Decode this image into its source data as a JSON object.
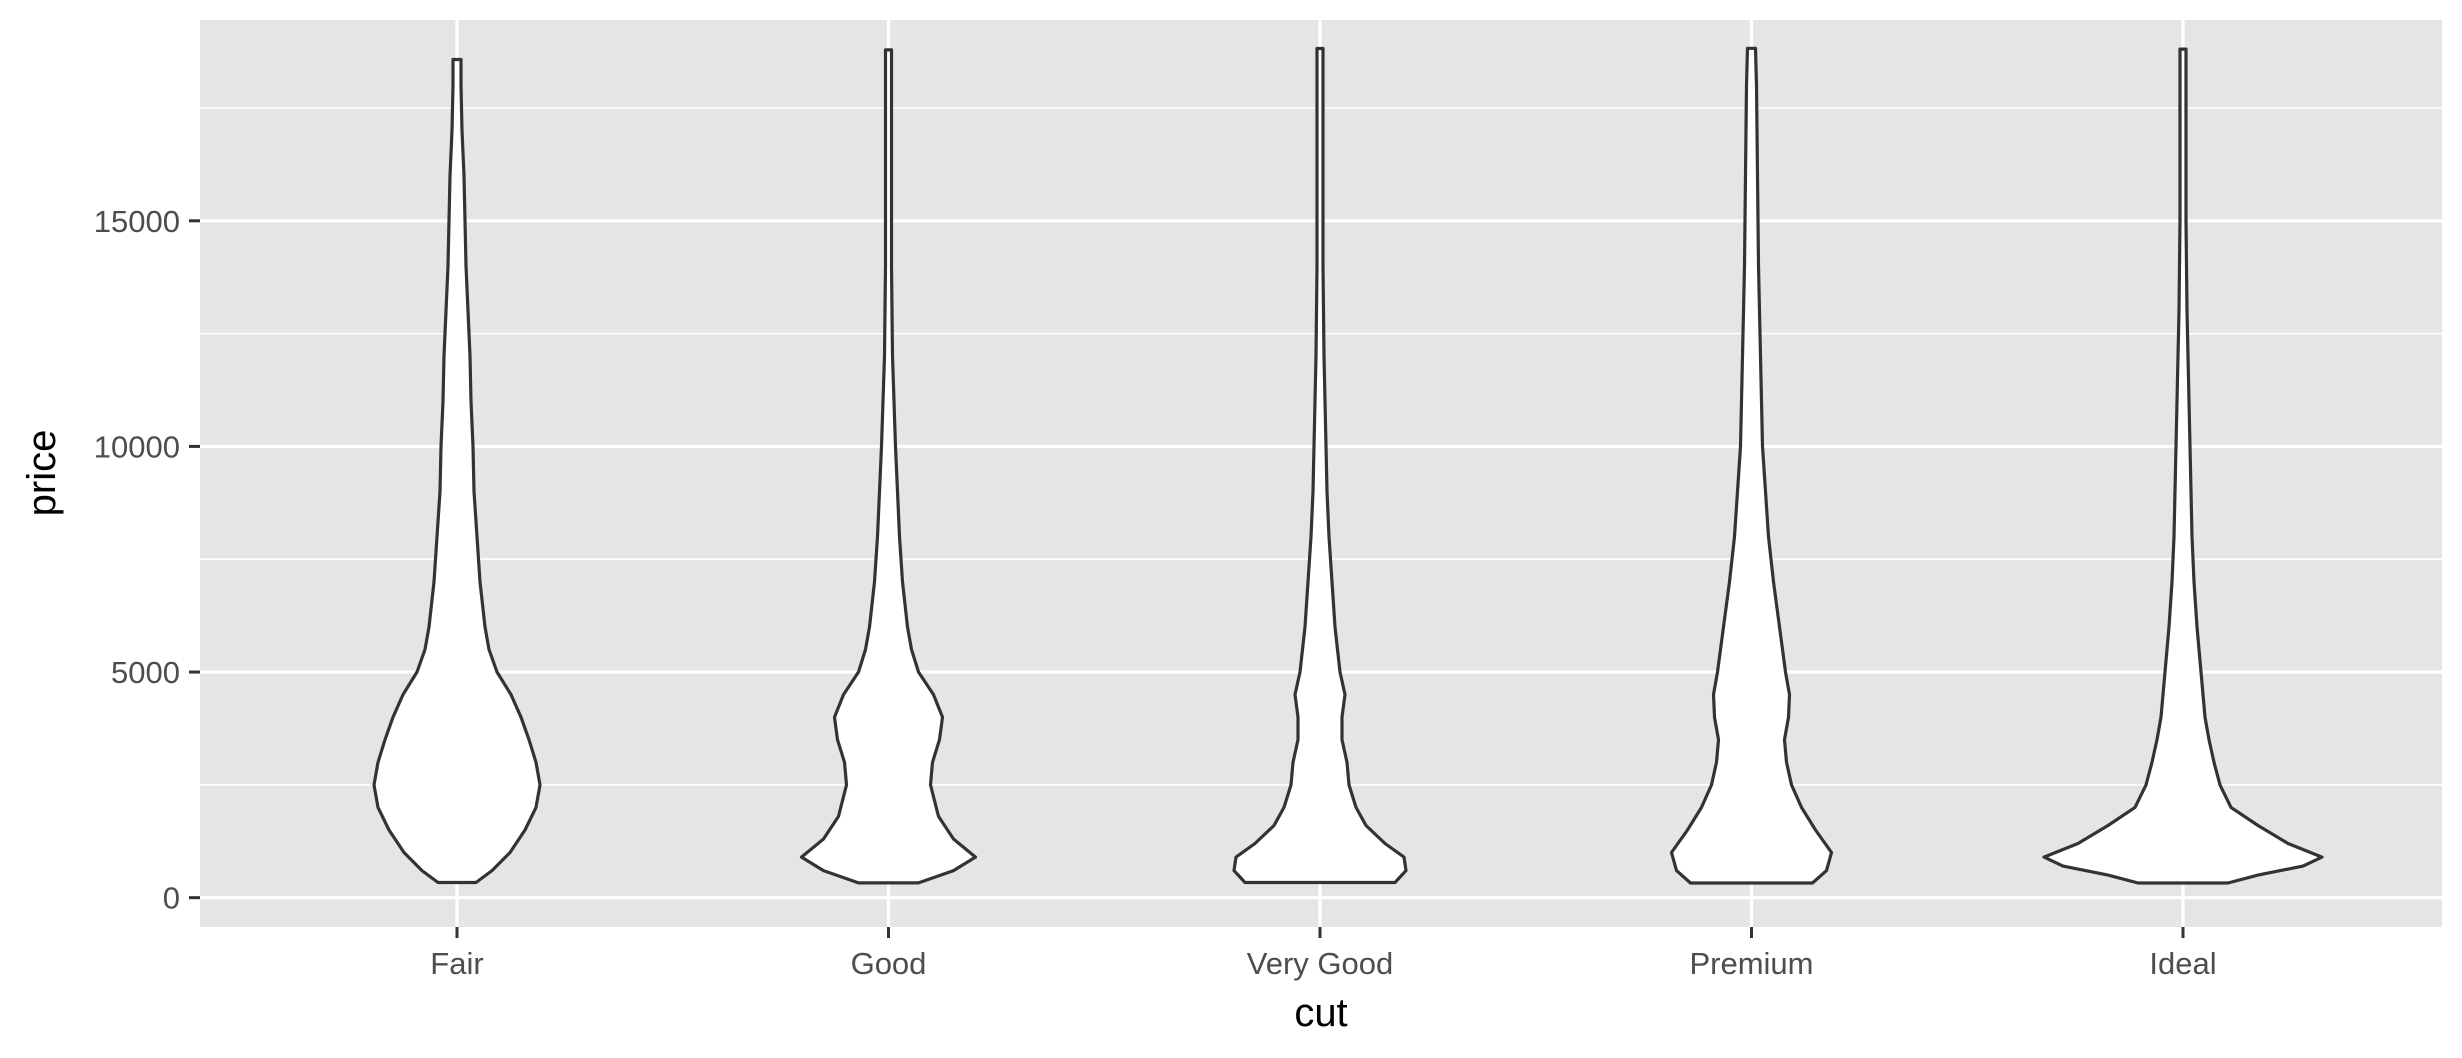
{
  "chart_data": {
    "type": "violin",
    "xlabel": "cut",
    "ylabel": "price",
    "categories": [
      "Fair",
      "Good",
      "Very Good",
      "Premium",
      "Ideal"
    ],
    "ylim": [
      -650,
      19450
    ],
    "y_ticks": [
      0,
      5000,
      10000,
      15000
    ],
    "y_tick_labels": [
      "0",
      "5000",
      "10000",
      "15000"
    ],
    "grid": true,
    "colors": {
      "panel_background": "#e5e5e5",
      "grid_line": "#ffffff",
      "violin_fill": "#ffffff",
      "violin_outline": "#333333",
      "tick_label": "#4d4d4d"
    },
    "violins": [
      {
        "category": "Fair",
        "min": 337,
        "max": 18574,
        "profile": [
          [
            337,
            0.19
          ],
          [
            600,
            0.35
          ],
          [
            1000,
            0.53
          ],
          [
            1500,
            0.68
          ],
          [
            2000,
            0.79
          ],
          [
            2500,
            0.83
          ],
          [
            3000,
            0.79
          ],
          [
            3500,
            0.72
          ],
          [
            4000,
            0.64
          ],
          [
            4500,
            0.54
          ],
          [
            5000,
            0.4
          ],
          [
            5500,
            0.32
          ],
          [
            6000,
            0.28
          ],
          [
            7000,
            0.23
          ],
          [
            8000,
            0.2
          ],
          [
            9000,
            0.17
          ],
          [
            10000,
            0.16
          ],
          [
            11000,
            0.14
          ],
          [
            12000,
            0.13
          ],
          [
            13000,
            0.11
          ],
          [
            14000,
            0.09
          ],
          [
            15000,
            0.08
          ],
          [
            16000,
            0.07
          ],
          [
            17000,
            0.05
          ],
          [
            18000,
            0.04
          ],
          [
            18574,
            0.04
          ]
        ]
      },
      {
        "category": "Good",
        "min": 327,
        "max": 18788,
        "profile": [
          [
            327,
            0.3
          ],
          [
            600,
            0.65
          ],
          [
            900,
            0.87
          ],
          [
            1300,
            0.65
          ],
          [
            1800,
            0.5
          ],
          [
            2500,
            0.42
          ],
          [
            3000,
            0.44
          ],
          [
            3500,
            0.51
          ],
          [
            4000,
            0.54
          ],
          [
            4500,
            0.45
          ],
          [
            5000,
            0.3
          ],
          [
            5500,
            0.23
          ],
          [
            6000,
            0.19
          ],
          [
            7000,
            0.14
          ],
          [
            8000,
            0.11
          ],
          [
            9000,
            0.09
          ],
          [
            10000,
            0.07
          ],
          [
            12000,
            0.04
          ],
          [
            14000,
            0.03
          ],
          [
            16000,
            0.03
          ],
          [
            18000,
            0.03
          ],
          [
            18788,
            0.03
          ]
        ]
      },
      {
        "category": "Very Good",
        "min": 336,
        "max": 18818,
        "profile": [
          [
            336,
            0.75
          ],
          [
            600,
            0.86
          ],
          [
            900,
            0.84
          ],
          [
            1200,
            0.65
          ],
          [
            1600,
            0.46
          ],
          [
            2000,
            0.36
          ],
          [
            2500,
            0.29
          ],
          [
            3000,
            0.27
          ],
          [
            3500,
            0.22
          ],
          [
            4000,
            0.22
          ],
          [
            4500,
            0.25
          ],
          [
            5000,
            0.2
          ],
          [
            6000,
            0.15
          ],
          [
            7000,
            0.12
          ],
          [
            8000,
            0.09
          ],
          [
            9000,
            0.07
          ],
          [
            10000,
            0.06
          ],
          [
            11000,
            0.05
          ],
          [
            12000,
            0.04
          ],
          [
            14000,
            0.03
          ],
          [
            16000,
            0.03
          ],
          [
            18000,
            0.03
          ],
          [
            18818,
            0.03
          ]
        ]
      },
      {
        "category": "Premium",
        "min": 326,
        "max": 18823,
        "profile": [
          [
            326,
            0.61
          ],
          [
            600,
            0.75
          ],
          [
            1000,
            0.8
          ],
          [
            1500,
            0.64
          ],
          [
            2000,
            0.5
          ],
          [
            2500,
            0.4
          ],
          [
            3000,
            0.35
          ],
          [
            3500,
            0.33
          ],
          [
            4000,
            0.37
          ],
          [
            4500,
            0.38
          ],
          [
            5000,
            0.34
          ],
          [
            6000,
            0.28
          ],
          [
            7000,
            0.22
          ],
          [
            8000,
            0.17
          ],
          [
            9000,
            0.14
          ],
          [
            10000,
            0.11
          ],
          [
            11000,
            0.1
          ],
          [
            12000,
            0.09
          ],
          [
            13000,
            0.08
          ],
          [
            14000,
            0.07
          ],
          [
            16000,
            0.06
          ],
          [
            18000,
            0.05
          ],
          [
            18823,
            0.04
          ]
        ]
      },
      {
        "category": "Ideal",
        "min": 326,
        "max": 18806,
        "profile": [
          [
            326,
            0.45
          ],
          [
            500,
            0.75
          ],
          [
            700,
            1.2
          ],
          [
            900,
            1.39
          ],
          [
            1200,
            1.05
          ],
          [
            1600,
            0.75
          ],
          [
            2000,
            0.48
          ],
          [
            2500,
            0.37
          ],
          [
            3000,
            0.31
          ],
          [
            3500,
            0.26
          ],
          [
            4000,
            0.22
          ],
          [
            4500,
            0.2
          ],
          [
            5000,
            0.18
          ],
          [
            5500,
            0.16
          ],
          [
            6000,
            0.14
          ],
          [
            7000,
            0.11
          ],
          [
            8000,
            0.09
          ],
          [
            9000,
            0.08
          ],
          [
            10000,
            0.07
          ],
          [
            11000,
            0.06
          ],
          [
            12000,
            0.05
          ],
          [
            13000,
            0.04
          ],
          [
            15000,
            0.03
          ],
          [
            17000,
            0.03
          ],
          [
            18806,
            0.03
          ]
        ]
      }
    ]
  }
}
